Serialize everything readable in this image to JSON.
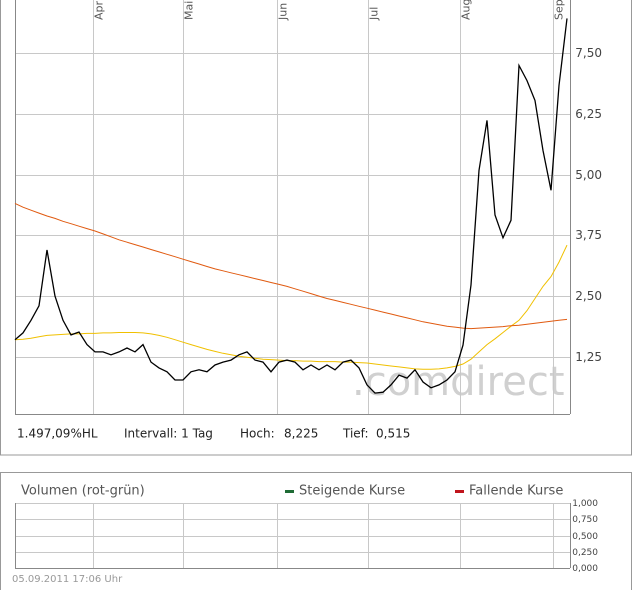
{
  "chart_data": [
    {
      "type": "line",
      "xlim": [
        0,
        69
      ],
      "xticks": [
        {
          "value": 9.75,
          "label": "Apr"
        },
        {
          "value": 21,
          "label": "Mai"
        },
        {
          "value": 32.75,
          "label": "Jun"
        },
        {
          "value": 44.1,
          "label": "Jul"
        },
        {
          "value": 55.6,
          "label": "Aug"
        },
        {
          "value": 67.25,
          "label": "Sep"
        }
      ],
      "ylim": [
        0.07,
        8.6
      ],
      "yticks": [
        {
          "value": 1.25,
          "label": "1,25"
        },
        {
          "value": 2.5,
          "label": "2,50"
        },
        {
          "value": 3.75,
          "label": "3,75"
        },
        {
          "value": 5,
          "label": "5,00"
        },
        {
          "value": 6.25,
          "label": "6,25"
        },
        {
          "value": 7.5,
          "label": "7,50"
        }
      ],
      "grid": true,
      "series": [
        {
          "color": "#000000",
          "values": [
            1.6,
            1.74,
            2.0,
            2.3,
            3.45,
            2.5,
            2.0,
            1.7,
            1.76,
            1.5,
            1.35,
            1.35,
            1.29,
            1.35,
            1.43,
            1.35,
            1.5,
            1.14,
            1.02,
            0.94,
            0.77,
            0.77,
            0.94,
            0.98,
            0.94,
            1.08,
            1.14,
            1.18,
            1.29,
            1.35,
            1.18,
            1.14,
            0.94,
            1.14,
            1.18,
            1.14,
            0.98,
            1.08,
            0.98,
            1.08,
            0.98,
            1.14,
            1.18,
            1.02,
            0.67,
            0.5,
            0.52,
            0.67,
            0.87,
            0.81,
            0.98,
            0.73,
            0.61,
            0.67,
            0.77,
            0.94,
            1.49,
            2.73,
            5.09,
            6.12,
            4.17,
            3.7,
            4.06,
            7.25,
            6.94,
            6.53,
            5.5,
            4.68,
            6.84,
            8.22
          ]
        },
        {
          "color": "#e05a10",
          "values": [
            4.41,
            4.33,
            4.27,
            4.21,
            4.15,
            4.1,
            4.04,
            3.99,
            3.94,
            3.89,
            3.84,
            3.78,
            3.72,
            3.66,
            3.61,
            3.56,
            3.51,
            3.46,
            3.41,
            3.36,
            3.31,
            3.26,
            3.21,
            3.16,
            3.11,
            3.06,
            3.02,
            2.98,
            2.94,
            2.9,
            2.86,
            2.82,
            2.78,
            2.74,
            2.7,
            2.65,
            2.6,
            2.55,
            2.5,
            2.45,
            2.41,
            2.37,
            2.33,
            2.29,
            2.25,
            2.21,
            2.17,
            2.13,
            2.09,
            2.05,
            2.01,
            1.97,
            1.94,
            1.91,
            1.88,
            1.86,
            1.84,
            1.83,
            1.84,
            1.85,
            1.86,
            1.87,
            1.89,
            1.9,
            1.92,
            1.94,
            1.96,
            1.98,
            2.0,
            2.02
          ]
        },
        {
          "color": "#f0c000",
          "values": [
            1.6,
            1.61,
            1.63,
            1.66,
            1.69,
            1.7,
            1.71,
            1.72,
            1.72,
            1.73,
            1.73,
            1.74,
            1.74,
            1.75,
            1.75,
            1.75,
            1.74,
            1.72,
            1.69,
            1.65,
            1.6,
            1.55,
            1.5,
            1.45,
            1.4,
            1.36,
            1.32,
            1.29,
            1.26,
            1.24,
            1.22,
            1.2,
            1.19,
            1.18,
            1.17,
            1.17,
            1.16,
            1.16,
            1.15,
            1.15,
            1.15,
            1.14,
            1.14,
            1.13,
            1.12,
            1.1,
            1.08,
            1.06,
            1.04,
            1.02,
            1.0,
            0.99,
            0.99,
            1.0,
            1.02,
            1.05,
            1.1,
            1.2,
            1.35,
            1.5,
            1.62,
            1.75,
            1.88,
            2.0,
            2.2,
            2.45,
            2.7,
            2.9,
            3.2,
            3.55
          ]
        }
      ],
      "watermark": ".comdirect",
      "footer": {
        "hl": "1.497,09%HL",
        "interval": "Intervall: 1 Tag",
        "high_label": "Hoch:",
        "high": "8,225",
        "low_label": "Tief:",
        "low": "0,515"
      }
    },
    {
      "type": "bar",
      "title": "Volumen (rot-grün)",
      "ylim": [
        0,
        1
      ],
      "yticks": [
        {
          "value": 0,
          "label": "0,000"
        },
        {
          "value": 0.25,
          "label": "0,250"
        },
        {
          "value": 0.5,
          "label": "0,500"
        },
        {
          "value": 0.75,
          "label": "0,750"
        },
        {
          "value": 1,
          "label": "1,000"
        }
      ],
      "grid": true,
      "series": [
        {
          "name": "Steigende Kurse",
          "color": "#1e6b35",
          "values": []
        },
        {
          "name": "Fallende Kurse",
          "color": "#c0141c",
          "values": []
        }
      ],
      "timestamp": "05.09.2011 17:06 Uhr"
    }
  ]
}
